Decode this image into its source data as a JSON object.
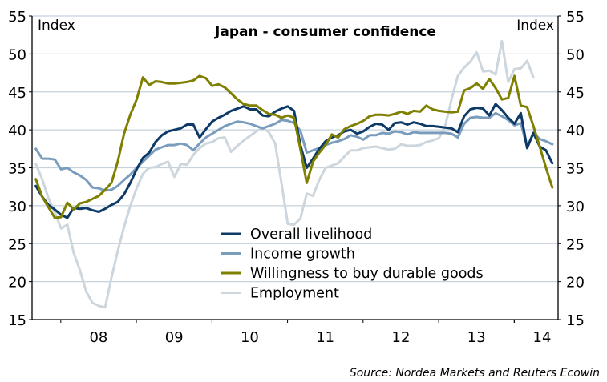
{
  "chart_data": {
    "type": "line",
    "title": "Japan - consumer confidence",
    "ylabel_left": "Index",
    "ylabel_right": "Index",
    "source": "Source: Nordea Markets and Reuters Ecowin",
    "ylim": [
      15,
      55
    ],
    "yticks": [
      15,
      20,
      25,
      30,
      35,
      40,
      45,
      50,
      55
    ],
    "xlim": [
      2007.62,
      2014.58
    ],
    "xtick_labels": [
      "08",
      "09",
      "10",
      "11",
      "12",
      "13",
      "14"
    ],
    "grid": true,
    "legend_position": "bottom-center",
    "colors": {
      "overall": "#0e3a67",
      "income": "#7a9cbd",
      "durable": "#7f7f00",
      "employment": "#cdd6dd",
      "grid": "#c6d1dc",
      "axis": "#000000"
    },
    "series": [
      {
        "name": "Overall livelihood",
        "color_key": "overall",
        "start": 2007.67,
        "step_months": 1,
        "values": [
          32.6,
          31.2,
          30.1,
          29.5,
          28.8,
          28.4,
          29.7,
          29.6,
          29.7,
          29.4,
          29.2,
          29.6,
          30.1,
          30.5,
          31.5,
          33.0,
          34.8,
          36.3,
          37.0,
          38.4,
          39.3,
          39.8,
          40.0,
          40.2,
          40.7,
          40.7,
          39.0,
          40.1,
          41.1,
          41.6,
          42.0,
          42.5,
          42.8,
          43.1,
          42.7,
          42.7,
          41.9,
          41.8,
          42.4,
          42.8,
          43.1,
          42.5,
          38.0,
          35.0,
          36.2,
          37.5,
          38.5,
          39.0,
          39.3,
          39.8,
          40.0,
          39.5,
          39.8,
          40.4,
          40.8,
          40.7,
          40.0,
          40.9,
          41.0,
          40.7,
          41.0,
          40.8,
          40.5,
          40.5,
          40.4,
          40.3,
          40.2,
          39.7,
          41.8,
          42.7,
          42.9,
          42.8,
          41.9,
          43.4,
          42.6,
          41.6,
          40.8,
          42.2,
          37.6,
          39.6,
          37.8,
          37.3,
          35.6
        ]
      },
      {
        "name": "Income growth",
        "color_key": "income",
        "start": 2007.67,
        "step_months": 1,
        "values": [
          37.5,
          36.2,
          36.2,
          36.1,
          34.8,
          35.0,
          34.4,
          34.0,
          33.4,
          32.4,
          32.3,
          32.0,
          32.1,
          32.6,
          33.4,
          34.1,
          35.0,
          35.8,
          36.6,
          37.4,
          37.7,
          38.0,
          38.0,
          38.2,
          38.0,
          37.3,
          38.2,
          39.0,
          39.5,
          40.0,
          40.5,
          40.8,
          41.1,
          41.0,
          40.8,
          40.5,
          40.2,
          40.5,
          40.8,
          41.3,
          41.2,
          40.9,
          39.9,
          37.0,
          37.3,
          37.6,
          38.0,
          38.3,
          38.5,
          38.8,
          39.3,
          39.1,
          38.7,
          39.3,
          39.3,
          39.6,
          39.5,
          39.8,
          39.7,
          39.4,
          39.7,
          39.6,
          39.6,
          39.6,
          39.6,
          39.6,
          39.5,
          39.0,
          40.8,
          41.6,
          41.7,
          41.6,
          41.6,
          42.2,
          41.8,
          41.3,
          40.6,
          40.9,
          37.7,
          39.6,
          38.8,
          38.5,
          38.1
        ]
      },
      {
        "name": "Willingness to buy durable goods",
        "color_key": "durable",
        "start": 2007.67,
        "step_months": 1,
        "values": [
          33.5,
          31.2,
          29.8,
          28.4,
          28.5,
          30.4,
          29.5,
          30.3,
          30.5,
          30.9,
          31.3,
          32.1,
          33.0,
          35.8,
          39.5,
          42.0,
          44.0,
          46.9,
          45.9,
          46.4,
          46.3,
          46.1,
          46.1,
          46.2,
          46.3,
          46.5,
          47.1,
          46.8,
          45.8,
          46.0,
          45.6,
          44.8,
          44.0,
          43.4,
          43.2,
          43.2,
          42.6,
          42.1,
          42.0,
          41.6,
          41.9,
          41.6,
          37.5,
          33.0,
          35.8,
          37.0,
          38.0,
          39.4,
          39.0,
          40.1,
          40.5,
          40.8,
          41.2,
          41.8,
          42.0,
          42.0,
          41.9,
          42.1,
          42.4,
          42.1,
          42.5,
          42.4,
          43.2,
          42.7,
          42.5,
          42.4,
          42.3,
          42.4,
          45.2,
          45.5,
          46.1,
          45.4,
          46.7,
          45.5,
          44.0,
          44.2,
          47.1,
          43.2,
          43.0,
          40.5,
          37.8,
          35.0,
          32.4
        ]
      },
      {
        "name": "Employment",
        "color_key": "employment",
        "start": 2007.67,
        "step_months": 1,
        "values": [
          35.5,
          33.5,
          31.0,
          29.2,
          27.0,
          27.5,
          23.8,
          21.5,
          18.7,
          17.2,
          16.8,
          16.6,
          20.5,
          24.0,
          27.2,
          30.0,
          32.3,
          34.2,
          35.0,
          35.1,
          35.5,
          35.8,
          33.8,
          35.5,
          35.4,
          36.7,
          37.6,
          38.2,
          38.4,
          38.9,
          39.0,
          37.1,
          37.9,
          38.6,
          39.2,
          39.8,
          40.3,
          39.7,
          38.2,
          33.0,
          27.6,
          27.5,
          28.3,
          31.6,
          31.3,
          33.4,
          35.0,
          35.3,
          35.6,
          36.5,
          37.3,
          37.3,
          37.6,
          37.7,
          37.8,
          37.6,
          37.4,
          37.5,
          38.1,
          37.9,
          37.9,
          38.0,
          38.4,
          38.6,
          38.9,
          40.5,
          44.0,
          47.1,
          48.2,
          49.0,
          50.2,
          47.7,
          47.8,
          47.3,
          51.7,
          46.3,
          48.0,
          48.1,
          49.1,
          46.9
        ]
      }
    ]
  }
}
